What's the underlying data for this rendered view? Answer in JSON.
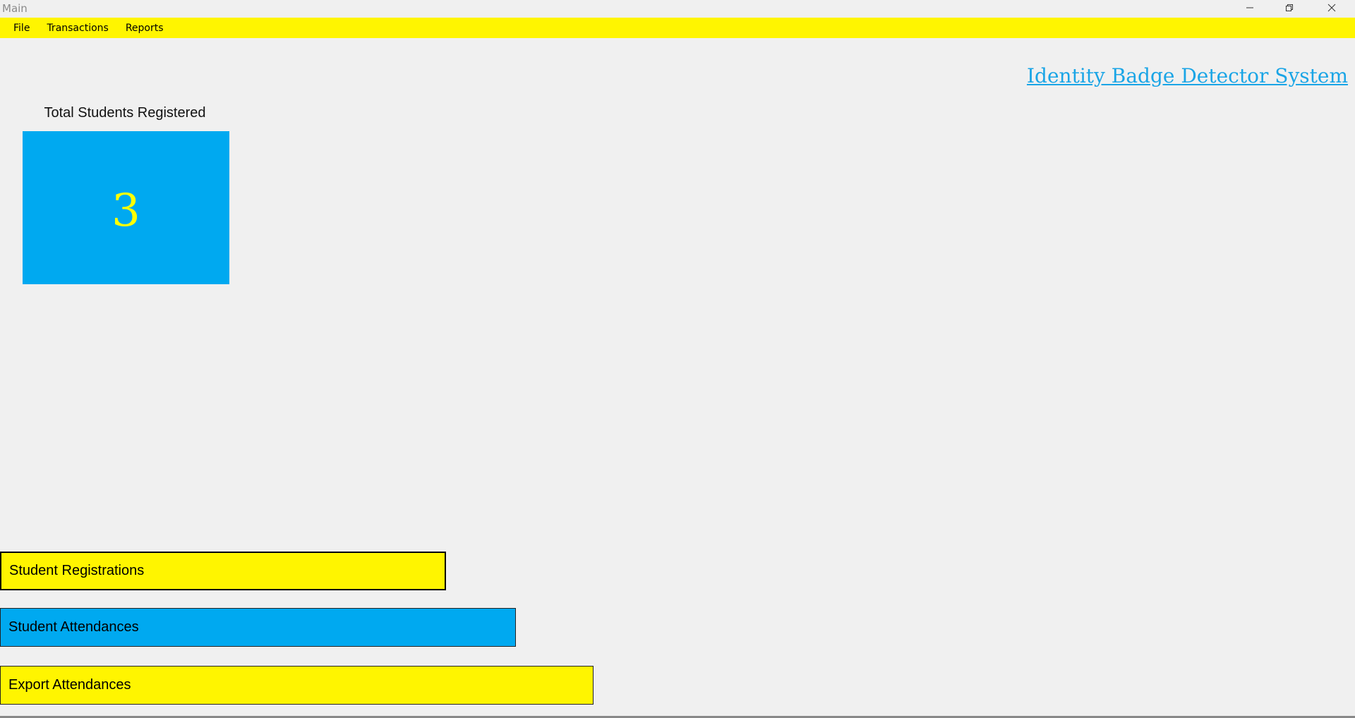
{
  "window": {
    "title": "Main",
    "controls": {
      "minimize": "minimize-icon",
      "maximize": "restore-icon",
      "close": "close-icon"
    }
  },
  "menubar": {
    "items": [
      {
        "label": "File"
      },
      {
        "label": "Transactions"
      },
      {
        "label": "Reports"
      }
    ]
  },
  "header": {
    "app_title": "Identity Badge Detector System"
  },
  "stats": {
    "total_students": {
      "label": "Total Students Registered",
      "value": "3"
    }
  },
  "actions": {
    "student_registrations": "Student Registrations",
    "student_attendances": "Student Attendances",
    "export_attendances": "Export Attendances"
  },
  "colors": {
    "yellow": "#fff500",
    "blue": "#00a9f0",
    "title_blue": "#1aa5e6",
    "background": "#f0f0f0"
  }
}
